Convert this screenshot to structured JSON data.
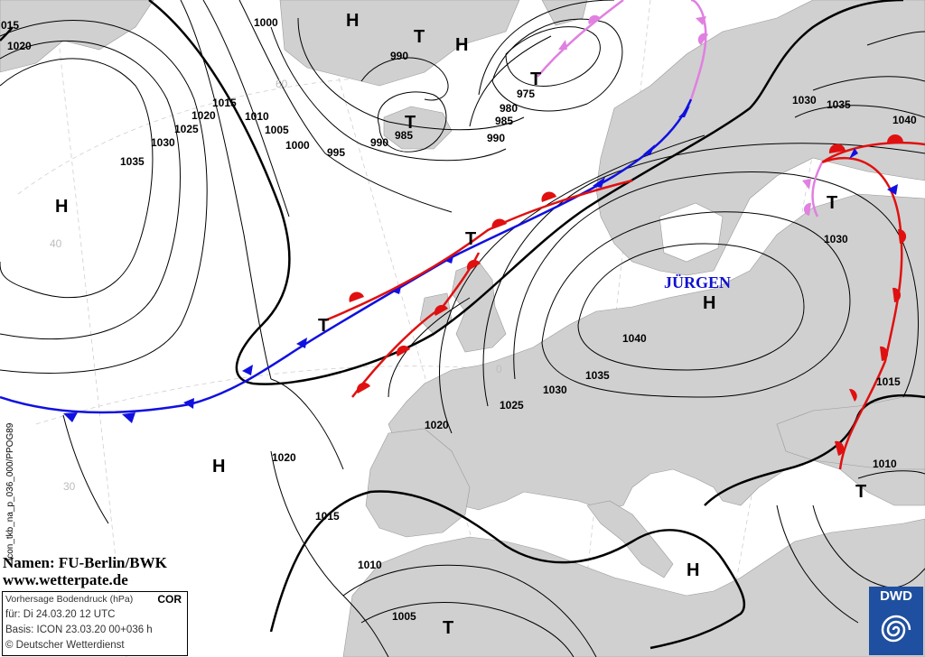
{
  "map": {
    "credits": {
      "names_line": "Namen: FU-Berlin/BWK",
      "website": "www.wetterpate.de"
    },
    "info_box": {
      "forecast_type": "Vorhersage Bodendruck (hPa)",
      "correction_flag": "COR",
      "valid_time": "für:  Di 24.03.20  12 UTC",
      "model_base": "Basis: ICON  23.03.20 00+036 h",
      "copyright": "© Deutscher Wetterdienst"
    },
    "product_code": "icon_tkb_na_p_036_000/PPOG89",
    "logo": {
      "text": "DWD"
    },
    "pressure_centers": [
      {
        "type": "H",
        "id": "h1"
      },
      {
        "type": "H",
        "id": "h2"
      },
      {
        "type": "H",
        "id": "h3"
      },
      {
        "type": "H",
        "id": "h4"
      },
      {
        "type": "H",
        "id": "h5"
      },
      {
        "type": "H",
        "id": "h6"
      },
      {
        "type": "H",
        "id": "h7"
      },
      {
        "type": "T",
        "id": "t1"
      },
      {
        "type": "T",
        "id": "t2"
      },
      {
        "type": "T",
        "id": "t3"
      },
      {
        "type": "T",
        "id": "t4"
      },
      {
        "type": "T",
        "id": "t5"
      },
      {
        "type": "T",
        "id": "t6"
      },
      {
        "type": "T",
        "id": "t7"
      },
      {
        "type": "T",
        "id": "t8"
      },
      {
        "type": "T",
        "id": "t9"
      },
      {
        "type": "T",
        "id": "t10"
      }
    ],
    "named_system": "JÜRGEN",
    "isobar_labels": [
      "015",
      "1020",
      "1000",
      "990",
      "975",
      "980",
      "985",
      "990",
      "1030",
      "1035",
      "1040",
      "1015",
      "1010",
      "1005",
      "1000",
      "995",
      "990",
      "985",
      "1020",
      "1025",
      "1030",
      "1035",
      "1030",
      "1040",
      "1035",
      "1030",
      "1025",
      "1020",
      "1020",
      "1015",
      "1010",
      "1005",
      "1015",
      "1010"
    ],
    "grid_labels": [
      "40",
      "30",
      "0",
      "60"
    ],
    "colors": {
      "warm_front": "#e01010",
      "cold_front": "#1010e0",
      "occlusion": "#e080e0",
      "land": "#d0d0d0",
      "sea": "#ffffff",
      "named_system": "#1010d0",
      "dwd_blue": "#1f4fa0"
    }
  }
}
